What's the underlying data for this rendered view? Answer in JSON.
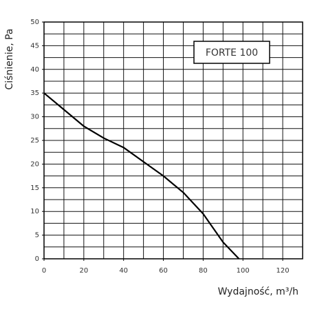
{
  "chart_data": {
    "type": "line",
    "xlabel": "Wydajność, m³/h",
    "ylabel": "Ciśnienie, Pa",
    "series": [
      {
        "name": "FORTE 100",
        "color": "#000000",
        "x": [
          0,
          10,
          20,
          30,
          40,
          50,
          60,
          70,
          80,
          90,
          98
        ],
        "values": [
          35,
          31.5,
          28,
          25.5,
          23.5,
          20.5,
          17.5,
          14,
          9.5,
          3.5,
          0
        ]
      }
    ],
    "xlim": [
      0,
      130
    ],
    "xticks": [
      0,
      20,
      40,
      60,
      80,
      100,
      120
    ],
    "ylim": [
      0,
      50
    ],
    "yticks": [
      0,
      5,
      10,
      15,
      20,
      25,
      30,
      35,
      40,
      45,
      50
    ],
    "x_grid": [
      10,
      20,
      30,
      40,
      50,
      60,
      70,
      80,
      90,
      100,
      110,
      120
    ],
    "y_grid": [
      2.5,
      5,
      7.5,
      10,
      12.5,
      15,
      17.5,
      20,
      22.5,
      25,
      27.5,
      30,
      32.5,
      35,
      37.5,
      40,
      42.5,
      45,
      47.5
    ],
    "grid": true,
    "legend": "upper right"
  }
}
